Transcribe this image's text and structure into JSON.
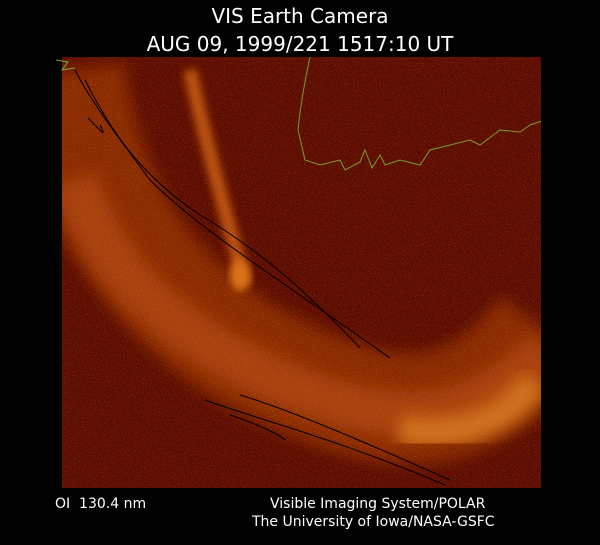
{
  "header": {
    "title": "VIS Earth Camera",
    "subtitle": "AUG 09, 1999/221 1517:10 UT"
  },
  "footer": {
    "filter": "OI  130.4 nm",
    "credit_line_1": "Visible Imaging System/POLAR",
    "credit_line_2": "The University of Iowa/NASA-GSFC"
  }
}
